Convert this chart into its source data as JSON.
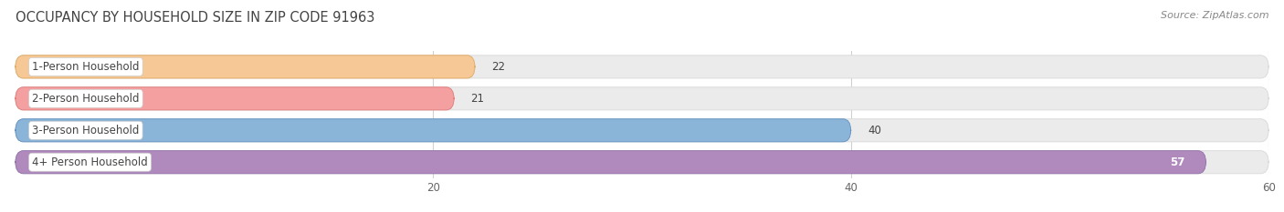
{
  "title": "OCCUPANCY BY HOUSEHOLD SIZE IN ZIP CODE 91963",
  "source": "Source: ZipAtlas.com",
  "categories": [
    "1-Person Household",
    "2-Person Household",
    "3-Person Household",
    "4+ Person Household"
  ],
  "values": [
    22,
    21,
    40,
    57
  ],
  "bar_colors": [
    "#f5c896",
    "#f5a0a0",
    "#8ab4d8",
    "#b08abd"
  ],
  "bar_edge_colors": [
    "#e0a860",
    "#e07878",
    "#6090c0",
    "#9070a8"
  ],
  "xlim": [
    0,
    60
  ],
  "xticks": [
    20,
    40,
    60
  ],
  "bg_color": "#ffffff",
  "bar_bg_color": "#ebebeb",
  "bar_bg_edge_color": "#d8d8d8",
  "title_fontsize": 10.5,
  "label_fontsize": 8.5,
  "value_fontsize": 8.5,
  "source_fontsize": 8,
  "title_color": "#444444",
  "source_color": "#888888",
  "label_color": "#444444",
  "value_color_outside": "#444444",
  "value_color_inside": "#ffffff",
  "grid_color": "#d0d0d0"
}
